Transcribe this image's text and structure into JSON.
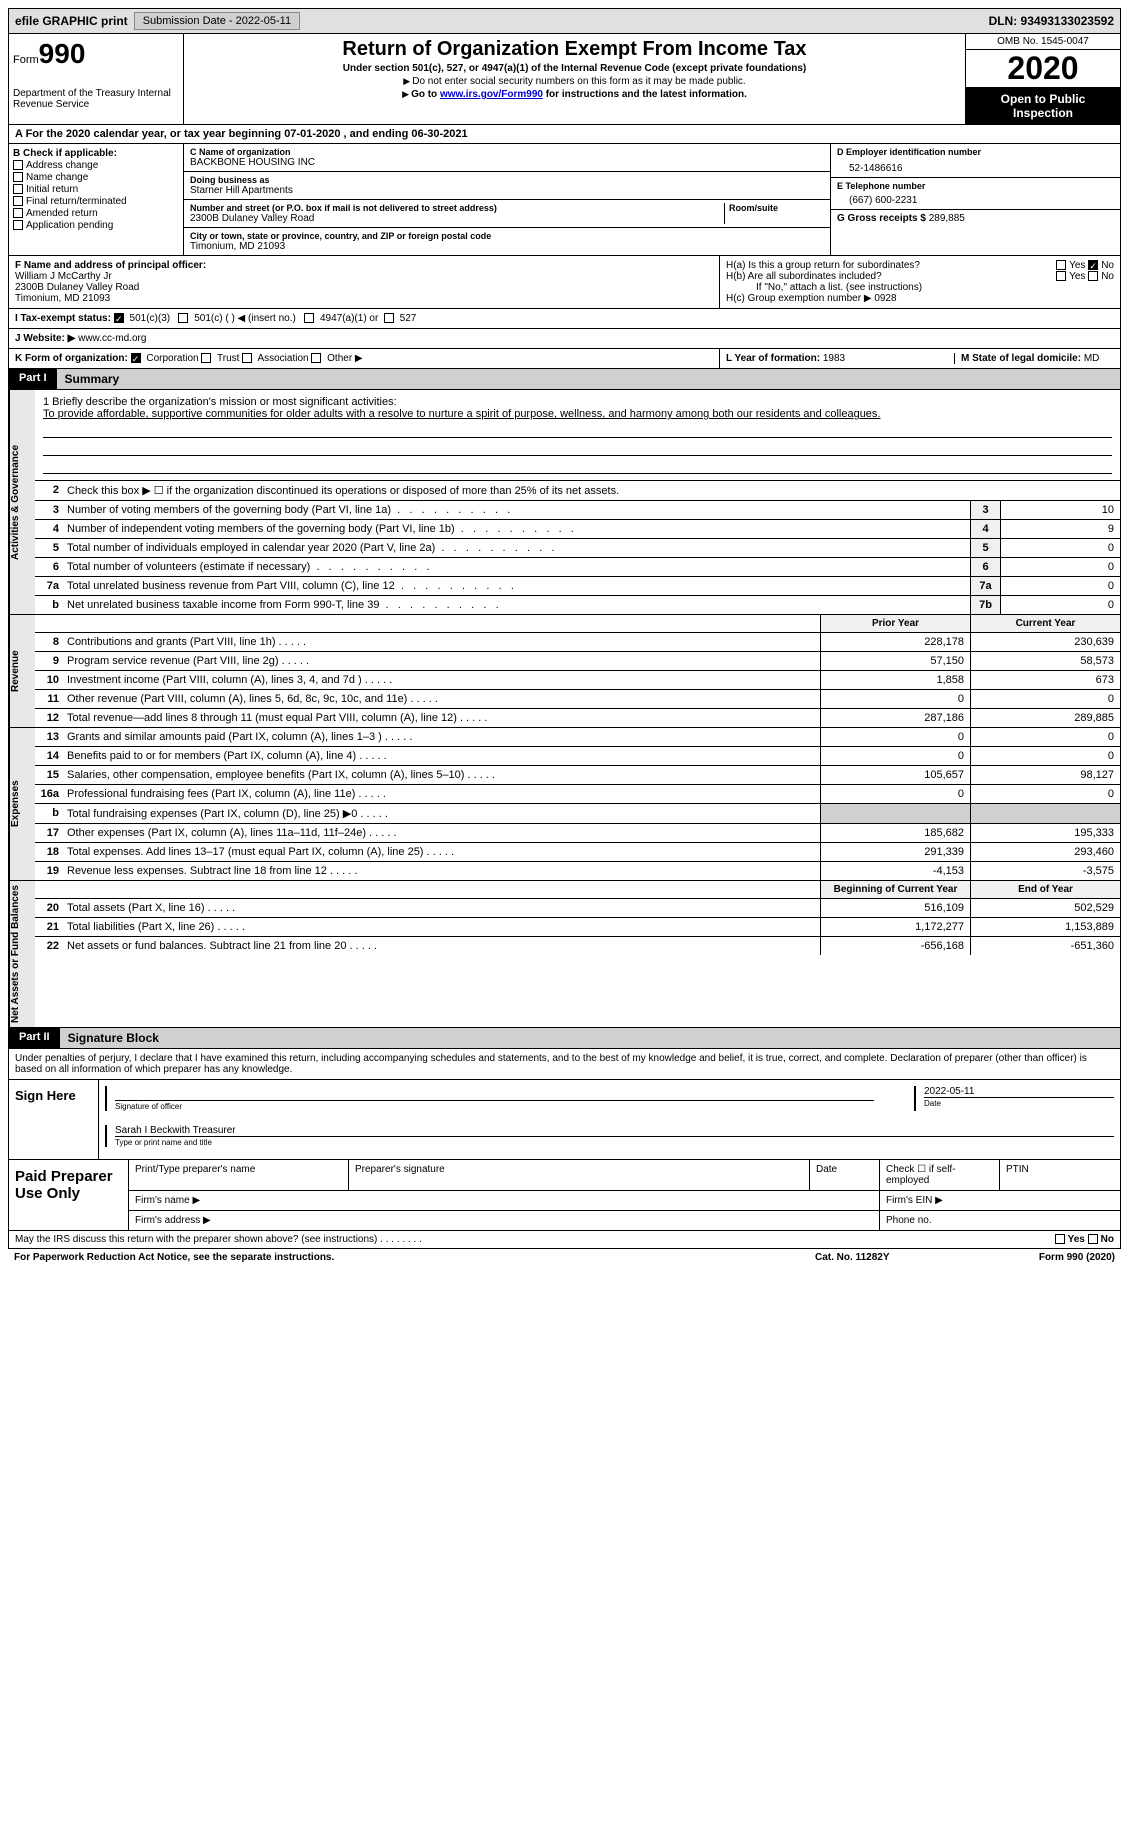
{
  "topbar": {
    "efile": "efile GRAPHIC print",
    "submission": "Submission Date - 2022-05-11",
    "dln": "DLN: 93493133023592"
  },
  "header": {
    "form_label": "Form",
    "form_num": "990",
    "dept": "Department of the Treasury\nInternal Revenue Service",
    "title": "Return of Organization Exempt From Income Tax",
    "sub": "Under section 501(c), 527, or 4947(a)(1) of the Internal Revenue Code (except private foundations)",
    "note1": "Do not enter social security numbers on this form as it may be made public.",
    "note2_pre": "Go to ",
    "note2_link": "www.irs.gov/Form990",
    "note2_post": " for instructions and the latest information.",
    "omb": "OMB No. 1545-0047",
    "year": "2020",
    "inspect": "Open to Public Inspection"
  },
  "line_a": "A For the 2020 calendar year, or tax year beginning 07-01-2020     , and ending 06-30-2021",
  "col_b": {
    "hdr": "B Check if applicable:",
    "opts": [
      "Address change",
      "Name change",
      "Initial return",
      "Final return/terminated",
      "Amended return",
      "Application pending"
    ]
  },
  "col_c": {
    "name_lbl": "C Name of organization",
    "name": "BACKBONE HOUSING INC",
    "dba_lbl": "Doing business as",
    "dba": "Starner Hill Apartments",
    "addr_lbl": "Number and street (or P.O. box if mail is not delivered to street address)",
    "room_lbl": "Room/suite",
    "addr": "2300B Dulaney Valley Road",
    "city_lbl": "City or town, state or province, country, and ZIP or foreign postal code",
    "city": "Timonium, MD  21093"
  },
  "col_d": {
    "ein_lbl": "D Employer identification number",
    "ein": "52-1486616",
    "tel_lbl": "E Telephone number",
    "tel": "(667) 600-2231",
    "gross_lbl": "G Gross receipts $",
    "gross": "289,885"
  },
  "row_f": {
    "lbl": "F  Name and address of principal officer:",
    "name": "William J McCarthy Jr",
    "addr1": "2300B Dulaney Valley Road",
    "addr2": "Timonium, MD  21093"
  },
  "row_h": {
    "a_lbl": "H(a)  Is this a group return for subordinates?",
    "b_lbl": "H(b)  Are all subordinates included?",
    "note": "If \"No,\" attach a list. (see instructions)",
    "c_lbl": "H(c)  Group exemption number ▶",
    "c_val": "0928"
  },
  "row_i": {
    "lbl": "I   Tax-exempt status:",
    "o1": "501(c)(3)",
    "o2": "501(c) (  ) ◀ (insert no.)",
    "o3": "4947(a)(1) or",
    "o4": "527"
  },
  "row_j": {
    "lbl": "J   Website: ▶",
    "val": "www.cc-md.org"
  },
  "row_k": {
    "lbl": "K Form of organization:",
    "o1": "Corporation",
    "o2": "Trust",
    "o3": "Association",
    "o4": "Other ▶",
    "l_lbl": "L Year of formation:",
    "l_val": "1983",
    "m_lbl": "M State of legal domicile:",
    "m_val": "MD"
  },
  "part1": {
    "tag": "Part I",
    "title": "Summary"
  },
  "mission": {
    "q": "1  Briefly describe the organization's mission or most significant activities:",
    "ans": "To provide affordable, supportive communities for older adults with a resolve to nurture a spirit of purpose, wellness, and harmony among both our residents and colleagues."
  },
  "gov": {
    "vtab": "Activities & Governance",
    "l2": "Check this box ▶ ☐  if the organization discontinued its operations or disposed of more than 25% of its net assets.",
    "rows": [
      {
        "n": "3",
        "t": "Number of voting members of the governing body (Part VI, line 1a)",
        "box": "3",
        "v": "10"
      },
      {
        "n": "4",
        "t": "Number of independent voting members of the governing body (Part VI, line 1b)",
        "box": "4",
        "v": "9"
      },
      {
        "n": "5",
        "t": "Total number of individuals employed in calendar year 2020 (Part V, line 2a)",
        "box": "5",
        "v": "0"
      },
      {
        "n": "6",
        "t": "Total number of volunteers (estimate if necessary)",
        "box": "6",
        "v": "0"
      },
      {
        "n": "7a",
        "t": "Total unrelated business revenue from Part VIII, column (C), line 12",
        "box": "7a",
        "v": "0"
      },
      {
        "n": "b",
        "t": "Net unrelated business taxable income from Form 990-T, line 39",
        "box": "7b",
        "v": "0"
      }
    ]
  },
  "hdr2": {
    "c1": "Prior Year",
    "c2": "Current Year"
  },
  "rev": {
    "vtab": "Revenue",
    "rows": [
      {
        "n": "8",
        "t": "Contributions and grants (Part VIII, line 1h)",
        "v1": "228,178",
        "v2": "230,639"
      },
      {
        "n": "9",
        "t": "Program service revenue (Part VIII, line 2g)",
        "v1": "57,150",
        "v2": "58,573"
      },
      {
        "n": "10",
        "t": "Investment income (Part VIII, column (A), lines 3, 4, and 7d )",
        "v1": "1,858",
        "v2": "673"
      },
      {
        "n": "11",
        "t": "Other revenue (Part VIII, column (A), lines 5, 6d, 8c, 9c, 10c, and 11e)",
        "v1": "0",
        "v2": "0"
      },
      {
        "n": "12",
        "t": "Total revenue—add lines 8 through 11 (must equal Part VIII, column (A), line 12)",
        "v1": "287,186",
        "v2": "289,885"
      }
    ]
  },
  "exp": {
    "vtab": "Expenses",
    "rows": [
      {
        "n": "13",
        "t": "Grants and similar amounts paid (Part IX, column (A), lines 1–3 )",
        "v1": "0",
        "v2": "0"
      },
      {
        "n": "14",
        "t": "Benefits paid to or for members (Part IX, column (A), line 4)",
        "v1": "0",
        "v2": "0"
      },
      {
        "n": "15",
        "t": "Salaries, other compensation, employee benefits (Part IX, column (A), lines 5–10)",
        "v1": "105,657",
        "v2": "98,127"
      },
      {
        "n": "16a",
        "t": "Professional fundraising fees (Part IX, column (A), line 11e)",
        "v1": "0",
        "v2": "0"
      },
      {
        "n": "b",
        "t": "Total fundraising expenses (Part IX, column (D), line 25) ▶0",
        "v1": "",
        "v2": "",
        "shade": true
      },
      {
        "n": "17",
        "t": "Other expenses (Part IX, column (A), lines 11a–11d, 11f–24e)",
        "v1": "185,682",
        "v2": "195,333"
      },
      {
        "n": "18",
        "t": "Total expenses. Add lines 13–17 (must equal Part IX, column (A), line 25)",
        "v1": "291,339",
        "v2": "293,460"
      },
      {
        "n": "19",
        "t": "Revenue less expenses. Subtract line 18 from line 12",
        "v1": "-4,153",
        "v2": "-3,575"
      }
    ]
  },
  "hdr3": {
    "c1": "Beginning of Current Year",
    "c2": "End of Year"
  },
  "net": {
    "vtab": "Net Assets or Fund Balances",
    "rows": [
      {
        "n": "20",
        "t": "Total assets (Part X, line 16)",
        "v1": "516,109",
        "v2": "502,529"
      },
      {
        "n": "21",
        "t": "Total liabilities (Part X, line 26)",
        "v1": "1,172,277",
        "v2": "1,153,889"
      },
      {
        "n": "22",
        "t": "Net assets or fund balances. Subtract line 21 from line 20",
        "v1": "-656,168",
        "v2": "-651,360"
      }
    ]
  },
  "part2": {
    "tag": "Part II",
    "title": "Signature Block"
  },
  "sigtext": "Under penalties of perjury, I declare that I have examined this return, including accompanying schedules and statements, and to the best of my knowledge and belief, it is true, correct, and complete. Declaration of preparer (other than officer) is based on all information of which preparer has any knowledge.",
  "sign": {
    "left": "Sign Here",
    "sig_lbl": "Signature of officer",
    "date_lbl": "Date",
    "date": "2022-05-11",
    "name": "Sarah I Beckwith Treasurer",
    "name_lbl": "Type or print name and title"
  },
  "prep": {
    "left": "Paid Preparer Use Only",
    "h1": "Print/Type preparer's name",
    "h2": "Preparer's signature",
    "h3": "Date",
    "h4": "Check ☐ if self-employed",
    "h5": "PTIN",
    "r2a": "Firm's name   ▶",
    "r2b": "Firm's EIN ▶",
    "r3a": "Firm's address ▶",
    "r3b": "Phone no."
  },
  "footer": {
    "q": "May the IRS discuss this return with the preparer shown above? (see instructions)",
    "yes": "Yes",
    "no": "No"
  },
  "footer2": {
    "l": "For Paperwork Reduction Act Notice, see the separate instructions.",
    "m": "Cat. No. 11282Y",
    "r": "Form 990 (2020)"
  }
}
